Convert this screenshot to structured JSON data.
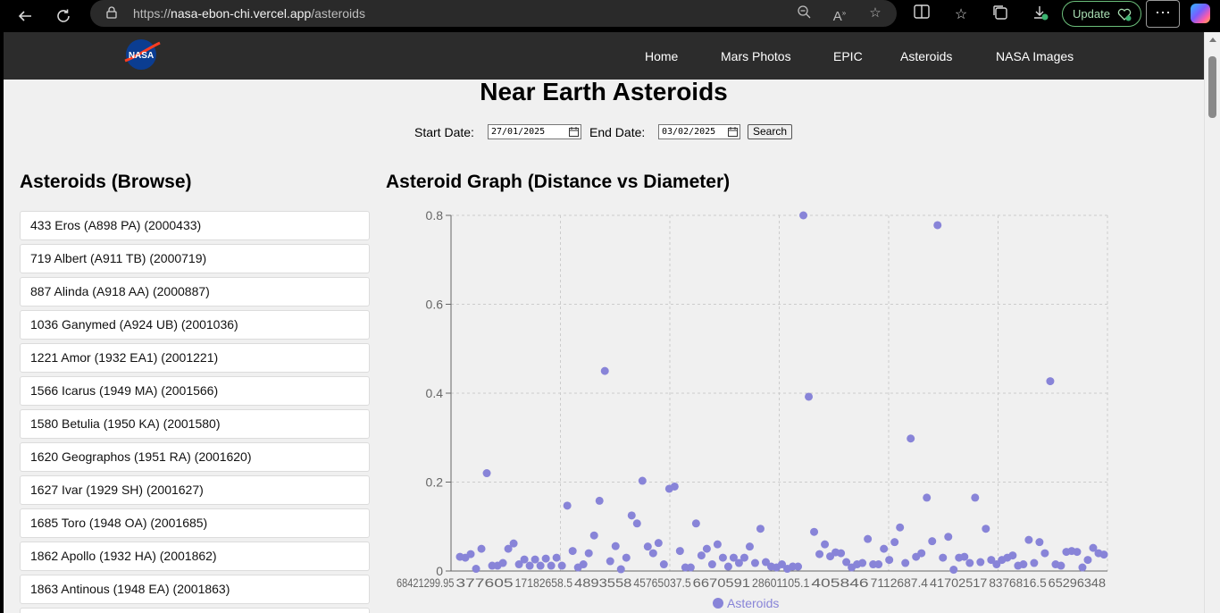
{
  "browser": {
    "url_prefix": "https://",
    "url_host": "nasa-ebon-chi.vercel.app",
    "url_path": "/asteroids",
    "update_label": "Update",
    "more_label": "⋯"
  },
  "nav": {
    "logo_text": "NASA",
    "links": [
      "Home",
      "Mars Photos",
      "EPIC",
      "Asteroids",
      "NASA Images"
    ]
  },
  "page": {
    "title": "Near Earth Asteroids",
    "start_label": "Start Date:",
    "start_value": "27/01/2025",
    "end_label": "End Date:",
    "end_value": "03/02/2025",
    "search_label": "Search",
    "browse_title": "Asteroids (Browse)",
    "graph_title": "Asteroid Graph (Distance vs Diameter)"
  },
  "asteroids": [
    "433 Eros (A898 PA) (2000433)",
    "719 Albert (A911 TB) (2000719)",
    "887 Alinda (A918 AA) (2000887)",
    "1036 Ganymed (A924 UB) (2001036)",
    "1221 Amor (1932 EA1) (2001221)",
    "1566 Icarus (1949 MA) (2001566)",
    "1580 Betulia (1950 KA) (2001580)",
    "1620 Geographos (1951 RA) (2001620)",
    "1627 Ivar (1929 SH) (2001627)",
    "1685 Toro (1948 OA) (2001685)",
    "1862 Apollo (1932 HA) (2001862)",
    "1863 Antinous (1948 EA) (2001863)"
  ],
  "colors": {
    "point": "#8884d8",
    "grid": "#cccccc",
    "axis": "#666666"
  },
  "chart_data": {
    "type": "scatter",
    "title": "",
    "xlabel": "",
    "ylabel": "",
    "ylim": [
      0,
      0.8
    ],
    "yticks": [
      "0",
      "0.2",
      "0.4",
      "0.6",
      "0.8"
    ],
    "xtick_labels": [
      "68421299.95",
      "377605",
      "17182658.5",
      "4893558",
      "45765037.5",
      "6670591",
      "28601105.1",
      "405846",
      "7112687.4",
      "41702517",
      "8376816.5",
      "65296348"
    ],
    "grid": true,
    "legend_position": "bottom",
    "series": [
      {
        "name": "Asteroids",
        "y": [
          0.032,
          0.03,
          0.038,
          0.005,
          0.05,
          0.22,
          0.012,
          0.012,
          0.018,
          0.05,
          0.062,
          0.015,
          0.026,
          0.012,
          0.026,
          0.012,
          0.028,
          0.012,
          0.03,
          0.012,
          0.147,
          0.045,
          0.008,
          0.015,
          0.04,
          0.08,
          0.158,
          0.45,
          0.022,
          0.056,
          0.004,
          0.03,
          0.125,
          0.107,
          0.203,
          0.055,
          0.04,
          0.063,
          0.015,
          0.185,
          0.19,
          0.045,
          0.008,
          0.008,
          0.107,
          0.035,
          0.05,
          0.015,
          0.06,
          0.03,
          0.01,
          0.03,
          0.018,
          0.03,
          0.055,
          0.018,
          0.095,
          0.02,
          0.01,
          0.008,
          0.015,
          0.005,
          0.01,
          0.01,
          0.8,
          0.392,
          0.088,
          0.038,
          0.06,
          0.033,
          0.042,
          0.04,
          0.02,
          0.008,
          0.015,
          0.018,
          0.072,
          0.015,
          0.015,
          0.05,
          0.025,
          0.065,
          0.098,
          0.018,
          0.298,
          0.032,
          0.04,
          0.165,
          0.067,
          0.778,
          0.03,
          0.077,
          0.003,
          0.03,
          0.032,
          0.018,
          0.165,
          0.02,
          0.095,
          0.025,
          0.015,
          0.025,
          0.03,
          0.035,
          0.012,
          0.015,
          0.07,
          0.018,
          0.065,
          0.04,
          0.427,
          0.015,
          0.012,
          0.043,
          0.045,
          0.043,
          0.008,
          0.025,
          0.052,
          0.04,
          0.037
        ]
      }
    ]
  }
}
